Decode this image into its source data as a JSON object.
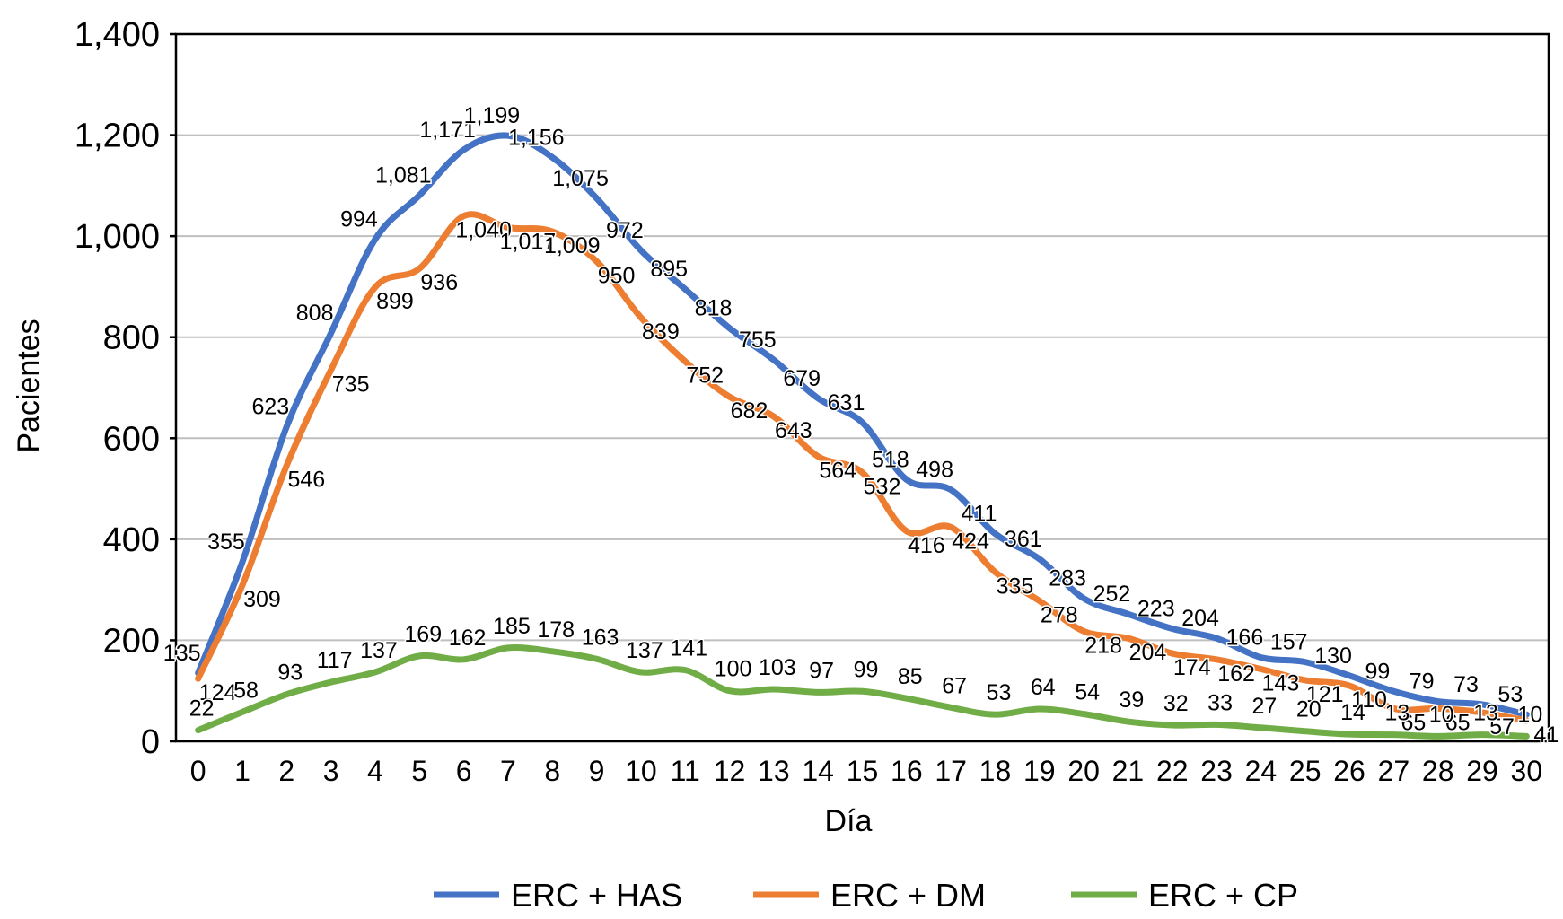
{
  "chart_data": {
    "type": "line",
    "title": "",
    "xlabel": "Día",
    "ylabel": "Pacientes",
    "ylim": [
      0,
      1400
    ],
    "yticks": [
      0,
      200,
      400,
      600,
      800,
      1000,
      1200,
      1400
    ],
    "ytick_labels": [
      "0",
      "200",
      "400",
      "600",
      "800",
      "1,000",
      "1,200",
      "1,400"
    ],
    "grid": true,
    "legend_position": "bottom",
    "x": [
      0,
      1,
      2,
      3,
      4,
      5,
      6,
      7,
      8,
      9,
      10,
      11,
      12,
      13,
      14,
      15,
      16,
      17,
      18,
      19,
      20,
      21,
      22,
      23,
      24,
      25,
      26,
      27,
      28,
      29,
      30
    ],
    "series": [
      {
        "name": "ERC + HAS",
        "color": "#4472C4",
        "values": [
          135,
          355,
          623,
          808,
          994,
          1081,
          1171,
          1199,
          1156,
          1075,
          972,
          895,
          818,
          755,
          679,
          631,
          518,
          498,
          411,
          361,
          283,
          252,
          223,
          204,
          166,
          157,
          130,
          99,
          79,
          73,
          53
        ]
      },
      {
        "name": "ERC + DM",
        "color": "#ED7D31",
        "values": [
          124,
          309,
          546,
          735,
          899,
          936,
          1040,
          1017,
          1009,
          950,
          839,
          752,
          682,
          643,
          564,
          532,
          416,
          424,
          335,
          278,
          218,
          204,
          174,
          162,
          143,
          121,
          110,
          65,
          65,
          57,
          41
        ]
      },
      {
        "name": "ERC + CP",
        "color": "#70AD47",
        "values": [
          22,
          58,
          93,
          117,
          137,
          169,
          162,
          185,
          178,
          163,
          137,
          141,
          100,
          103,
          97,
          99,
          85,
          67,
          53,
          64,
          54,
          39,
          32,
          33,
          27,
          20,
          14,
          13,
          10,
          13,
          10
        ]
      }
    ]
  }
}
